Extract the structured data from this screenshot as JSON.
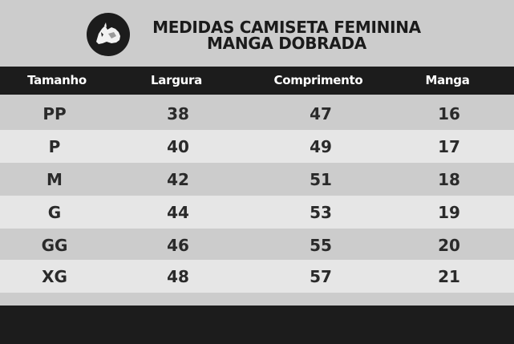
{
  "title": {
    "line1": "MEDIDAS CAMISETA FEMININA",
    "line2": "MANGA DOBRADA"
  },
  "logo_icon": "rhino-icon",
  "columns": [
    "Tamanho",
    "Largura",
    "Comprimento",
    "Manga"
  ],
  "rows": [
    {
      "size": "PP",
      "largura": "38",
      "comprimento": "47",
      "manga": "16"
    },
    {
      "size": "P",
      "largura": "40",
      "comprimento": "49",
      "manga": "17"
    },
    {
      "size": "M",
      "largura": "42",
      "comprimento": "51",
      "manga": "18"
    },
    {
      "size": "G",
      "largura": "44",
      "comprimento": "53",
      "manga": "19"
    },
    {
      "size": "GG",
      "largura": "46",
      "comprimento": "55",
      "manga": "20"
    },
    {
      "size": "XG",
      "largura": "48",
      "comprimento": "57",
      "manga": "21"
    }
  ],
  "colors": {
    "header_bg": "#1c1c1c",
    "row_dark": "#cccccc",
    "row_light": "#e6e6e6",
    "text": "#2a2a2a"
  }
}
